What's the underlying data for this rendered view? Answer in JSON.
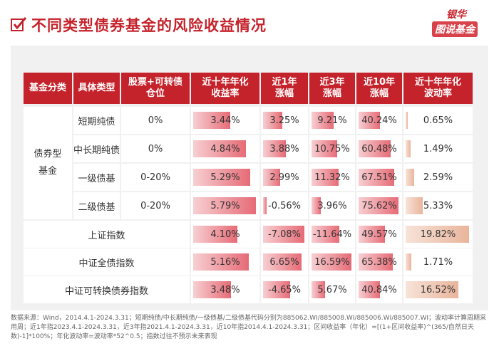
{
  "header": {
    "title": "不同类型债券基金的风险收益情况"
  },
  "logo": {
    "top": "银华",
    "bottom": "图说基金"
  },
  "table": {
    "columns": [
      [
        "基金分类"
      ],
      [
        "具体类型"
      ],
      [
        "股票+可转债",
        "仓位"
      ],
      [
        "近十年年化",
        "收益率"
      ],
      [
        "近1年",
        "涨幅"
      ],
      [
        "近3年",
        "涨幅"
      ],
      [
        "近10年",
        "涨幅"
      ],
      [
        "近十年年化",
        "波动率"
      ]
    ],
    "groups": [
      {
        "label": "债券型基金",
        "rows": [
          [
            "短期纯债",
            "0%",
            "3.44%",
            "3.25%",
            "9.21%",
            "40.24%",
            "0.65%"
          ],
          [
            "中长期纯债",
            "0%",
            "4.84%",
            "3.88%",
            "10.75%",
            "60.48%",
            "1.49%"
          ],
          [
            "一级债基",
            "0-20%",
            "5.29%",
            "2.99%",
            "11.32%",
            "67.51%",
            "2.59%"
          ],
          [
            "二级债基",
            "0-20%",
            "5.79%",
            "-0.56%",
            "3.96%",
            "75.62%",
            "5.33%"
          ]
        ]
      }
    ],
    "index_rows": [
      [
        "上证指数",
        "4.10%",
        "-7.08%",
        "-11.64%",
        "49.57%",
        "19.82%"
      ],
      [
        "中证全债指数",
        "5.16%",
        "6.65%",
        "16.59%",
        "65.38%",
        "1.71%"
      ],
      [
        "中证可转换债券指数",
        "3.48%",
        "-4.65%",
        "5.67%",
        "40.84%",
        "16.52%"
      ]
    ]
  },
  "footer": "数据来源：Wind，2014.4.1-2024.3.31；短期纯债/中长期纯债/一级债基/二级债基代码分别为885062.WI/885008.WI/885006.WI/885007.WI；波动率计算周期采用周；近1年指2023.4.1-2024.3.31，近3年指2021.4.1-2024.3.31，近10年指2014.4.1-2024.3.31；区间收益率（年化）=[(1+区间收益率)^(365/自然日天数)-1]*100%；年化波动率=波动率*52^0.5；指数过往不预示未来表现"
}
